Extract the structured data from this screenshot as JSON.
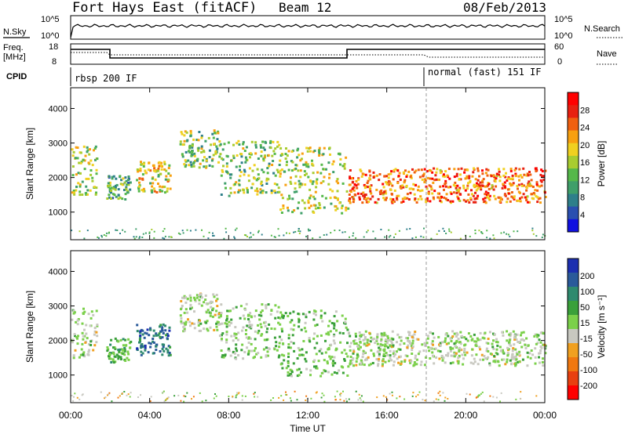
{
  "header": {
    "station": "Fort Hays East (fitACF)",
    "beam": "Beam 12",
    "date": "08/Feb/2013"
  },
  "noise_panel": {
    "label": "N.Sky",
    "right_label": "N.Search",
    "left_ticks": [
      "10^5",
      "10^0"
    ],
    "right_ticks": [
      "10^5",
      "10^0"
    ]
  },
  "freq_panel": {
    "label_line1": "Freq.",
    "label_line2": "[MHz]",
    "right_label": "Nave",
    "left_ticks": [
      "18",
      "8"
    ],
    "right_ticks": [
      "60",
      "0"
    ]
  },
  "cpid_panel": {
    "label": "CPID",
    "segments": [
      {
        "text": "rbsp 200 IF",
        "start_hour": 0
      },
      {
        "text": "normal (fast) 151 IF",
        "start_hour": 18
      }
    ]
  },
  "colors": {
    "power_scale": [
      "#1010e0",
      "#2a4fb0",
      "#2e7f8a",
      "#3f9f6a",
      "#55b84a",
      "#a8cc30",
      "#f0d020",
      "#f8a010",
      "#f06010",
      "#e82010",
      "#ff0000"
    ],
    "velocity_scale": [
      "#1c2fb0",
      "#2a5a9a",
      "#2e8a6e",
      "#3aa03a",
      "#7bd04a",
      "#c8c8c0",
      "#f0a020",
      "#f07810",
      "#e84010",
      "#ff0000"
    ],
    "background": "#ffffff"
  },
  "chart_data": [
    {
      "type": "heatmap",
      "name": "power",
      "ylabel": "Slant Range [km]",
      "yticks": [
        "1000",
        "2000",
        "3000",
        "4000"
      ],
      "ylim": [
        200,
        4600
      ],
      "colorbar_label": "Power [dB]",
      "colorbar_ticks": [
        "4",
        "8",
        "12",
        "16",
        "20",
        "24",
        "28"
      ],
      "clim": [
        0,
        32
      ],
      "echo_regions": [
        {
          "t0": 0.0,
          "t1": 1.3,
          "r0": 1500,
          "r1": 3000,
          "value": 16
        },
        {
          "t0": 1.8,
          "t1": 3.0,
          "r0": 1400,
          "r1": 2100,
          "value": 12
        },
        {
          "t0": 3.3,
          "t1": 5.0,
          "r0": 1600,
          "r1": 2500,
          "value": 18
        },
        {
          "t0": 5.5,
          "t1": 7.5,
          "r0": 2300,
          "r1": 3400,
          "value": 14
        },
        {
          "t0": 7.5,
          "t1": 10.5,
          "r0": 1500,
          "r1": 3100,
          "value": 14
        },
        {
          "t0": 10.5,
          "t1": 14.0,
          "r0": 1000,
          "r1": 2900,
          "value": 16
        },
        {
          "t0": 14.0,
          "t1": 24.0,
          "r0": 1300,
          "r1": 2300,
          "value": 24
        }
      ]
    },
    {
      "type": "heatmap",
      "name": "velocity",
      "ylabel": "Slant Range [km]",
      "yticks": [
        "1000",
        "2000",
        "3000",
        "4000"
      ],
      "ylim": [
        200,
        4600
      ],
      "colorbar_label": "Velocity [m s⁻¹]",
      "colorbar_ticks": [
        "200",
        "100",
        "50",
        "15",
        "-15",
        "-50",
        "-100",
        "-200"
      ],
      "clim": [
        -250,
        250
      ],
      "echo_regions": [
        {
          "t0": 0.0,
          "t1": 1.3,
          "r0": 1500,
          "r1": 3000,
          "value": 0
        },
        {
          "t0": 1.8,
          "t1": 3.0,
          "r0": 1400,
          "r1": 2100,
          "value": 60
        },
        {
          "t0": 3.3,
          "t1": 5.0,
          "r0": 1600,
          "r1": 2500,
          "value": 150
        },
        {
          "t0": 5.5,
          "t1": 7.5,
          "r0": 2300,
          "r1": 3400,
          "value": 0
        },
        {
          "t0": 7.5,
          "t1": 10.5,
          "r0": 1500,
          "r1": 3100,
          "value": 20
        },
        {
          "t0": 10.5,
          "t1": 14.0,
          "r0": 1000,
          "r1": 2900,
          "value": 40
        },
        {
          "t0": 14.0,
          "t1": 24.0,
          "r0": 1300,
          "r1": 2300,
          "value": 0
        }
      ]
    }
  ],
  "xaxis": {
    "label": "Time UT",
    "ticks": [
      "00:00",
      "04:00",
      "08:00",
      "12:00",
      "16:00",
      "20:00",
      "00:00"
    ],
    "range_hours": [
      0,
      24
    ]
  }
}
